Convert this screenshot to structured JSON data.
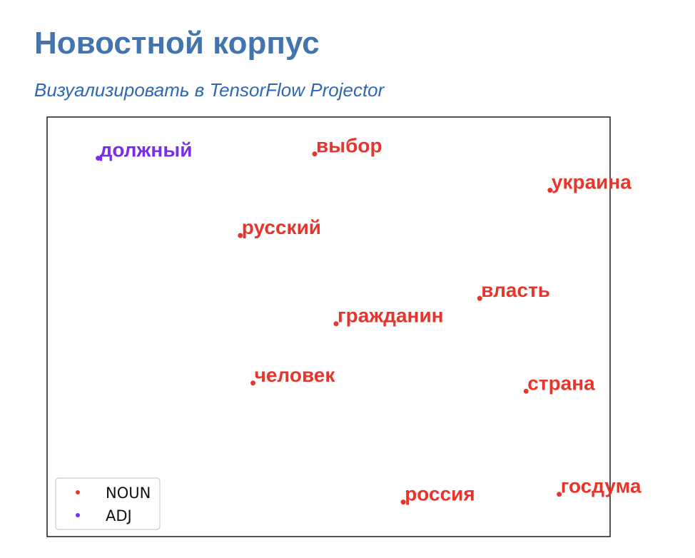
{
  "page": {
    "title": "Новостной корпус",
    "link_text": "Визуализировать в TensorFlow Projector",
    "colors": {
      "title": "#4374ae",
      "link": "#2e68b4",
      "noun": "#e8352c",
      "adj": "#7a2ee8",
      "axes_frame": "#1a1a1a",
      "legend_border": "#cccccc"
    }
  },
  "chart_data": {
    "type": "scatter",
    "title": "",
    "xlabel": "",
    "ylabel": "",
    "xlim": [
      0,
      100
    ],
    "ylim": [
      0,
      100
    ],
    "grid": false,
    "show_ticks": false,
    "legend": {
      "position": "bottom-left",
      "entries": [
        {
          "label": "NOUN",
          "color": "#e8352c"
        },
        {
          "label": "ADJ",
          "color": "#7a2ee8"
        }
      ]
    },
    "series": [
      {
        "name": "NOUN",
        "color": "#e8352c",
        "points": [
          {
            "label": "выбор",
            "x": 47.2,
            "y": 94.2
          },
          {
            "label": "украина",
            "x": 93.4,
            "y": 84.9
          },
          {
            "label": "русский",
            "x": 32.6,
            "y": 73.3
          },
          {
            "label": "власть",
            "x": 79.6,
            "y": 57.2
          },
          {
            "label": "гражданин",
            "x": 51.4,
            "y": 50.7
          },
          {
            "label": "человек",
            "x": 35.1,
            "y": 35.5
          },
          {
            "label": "страна",
            "x": 88.7,
            "y": 33.4
          },
          {
            "label": "россия",
            "x": 64.6,
            "y": 5.0
          },
          {
            "label": "госдума",
            "x": 95.2,
            "y": 7.0
          }
        ]
      },
      {
        "name": "ADJ",
        "color": "#7a2ee8",
        "points": [
          {
            "label": "должный",
            "x": 4.7,
            "y": 93.1
          }
        ]
      }
    ]
  }
}
